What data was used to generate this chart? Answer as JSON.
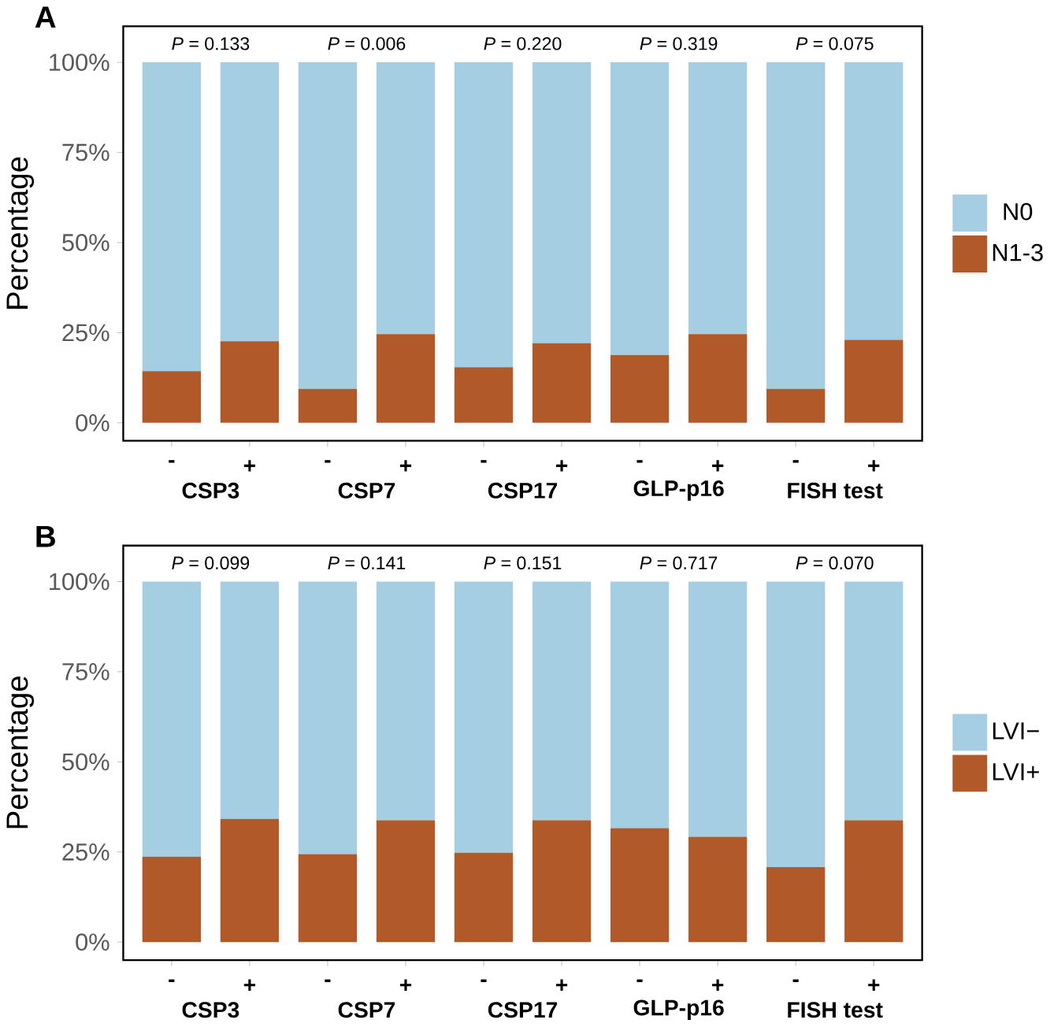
{
  "chart_data": [
    {
      "type": "bar",
      "title": "A",
      "ylabel": "Percentage",
      "stacked": true,
      "legend": "right",
      "categories": [
        "-",
        "+",
        "-",
        "+",
        "-",
        "+",
        "-",
        "+",
        "-",
        "+"
      ],
      "series": [
        {
          "name": "N1-3",
          "color": "#b15928",
          "values": [
            14.3,
            22.6,
            9.4,
            24.6,
            15.4,
            22.1,
            18.8,
            24.6,
            9.4,
            23.0
          ]
        },
        {
          "name": "N0",
          "color": "#a6cee3",
          "values": [
            85.7,
            77.4,
            90.6,
            75.4,
            84.6,
            77.9,
            81.2,
            75.4,
            90.6,
            77.0
          ]
        }
      ],
      "ylim": [
        -5,
        110
      ],
      "yticks": [
        {
          "value": 0,
          "label": "0%"
        },
        {
          "value": 25,
          "label": "25%"
        },
        {
          "value": 50,
          "label": "50%"
        },
        {
          "value": 75,
          "label": "75%"
        },
        {
          "value": 100,
          "label": "100%"
        }
      ],
      "annotations": [
        "*P* = 0.133",
        "*P* = 0.006",
        "*P* = 0.220",
        "*P* = 0.319",
        "*P* = 0.075",
        "CSP3",
        "CSP7",
        "CSP17",
        "GLP-p16",
        "FISH test"
      ]
    },
    {
      "type": "bar",
      "title": "B",
      "ylabel": "Percentage",
      "stacked": true,
      "legend": "right",
      "categories": [
        "-",
        "+",
        "-",
        "+",
        "-",
        "+",
        "-",
        "+",
        "-",
        "+"
      ],
      "series": [
        {
          "name": "LVI+",
          "color": "#b15928",
          "values": [
            23.7,
            34.2,
            24.4,
            33.8,
            24.8,
            33.8,
            31.6,
            29.2,
            20.8,
            33.8
          ]
        },
        {
          "name": "LVI−",
          "color": "#a6cee3",
          "values": [
            76.3,
            65.8,
            75.6,
            66.2,
            75.2,
            66.2,
            68.4,
            70.8,
            79.2,
            66.2
          ]
        }
      ],
      "ylim": [
        -5,
        110
      ],
      "yticks": [
        {
          "value": 0,
          "label": "0%"
        },
        {
          "value": 25,
          "label": "25%"
        },
        {
          "value": 50,
          "label": "50%"
        },
        {
          "value": 75,
          "label": "75%"
        },
        {
          "value": 100,
          "label": "100%"
        }
      ],
      "annotations": [
        "*P* = 0.099",
        "*P* = 0.141",
        "*P* = 0.151",
        "*P* = 0.717",
        "*P* = 0.070",
        "CSP3",
        "CSP7",
        "CSP17",
        "GLP-p16",
        "FISH test"
      ]
    }
  ]
}
